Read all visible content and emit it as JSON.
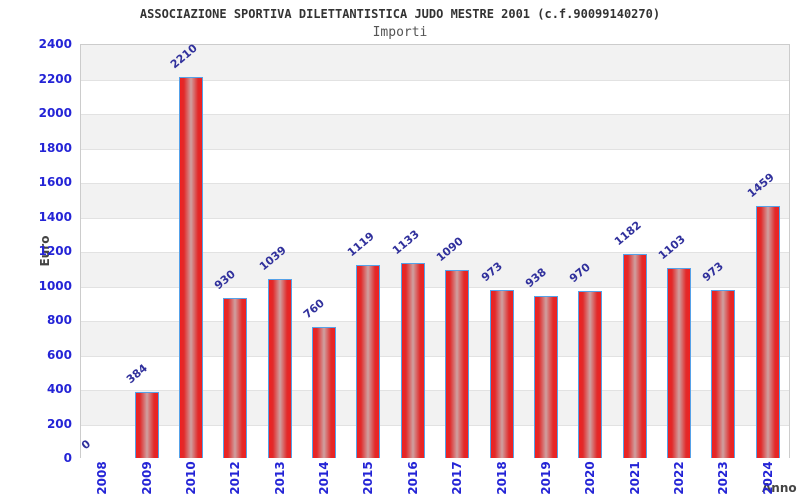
{
  "header": {
    "title": "ASSOCIAZIONE SPORTIVA DILETTANTISTICA JUDO MESTRE 2001 (c.f.90099140270)",
    "subtitle": "Importi"
  },
  "chart_data": {
    "type": "bar",
    "title": "ASSOCIAZIONE SPORTIVA DILETTANTISTICA JUDO MESTRE 2001 (c.f.90099140270)",
    "subtitle": "Importi",
    "xlabel": "Anno",
    "ylabel": "Euro",
    "categories": [
      "2008",
      "2009",
      "2010",
      "2012",
      "2013",
      "2014",
      "2015",
      "2016",
      "2017",
      "2018",
      "2019",
      "2020",
      "2021",
      "2022",
      "2023",
      "2024"
    ],
    "values": [
      0,
      384,
      2210,
      930,
      1039,
      760,
      1119,
      1133,
      1090,
      973,
      938,
      970,
      1182,
      1103,
      973,
      1459
    ],
    "ylim": [
      0,
      2400
    ],
    "y_ticks": [
      0,
      200,
      400,
      600,
      800,
      1000,
      1200,
      1400,
      1600,
      1800,
      2000,
      2200,
      2400
    ],
    "grid": true,
    "legend": "none",
    "colors": {
      "bar_edge": "#f02020",
      "bar_mid": "#cfa0a0",
      "bar_border": "#55a1e8",
      "tick_label": "#2424d6",
      "value_label": "#30309c",
      "axis_title": "#444444",
      "band_gray": "#f2f2f2",
      "band_white": "#ffffff",
      "gridline": "#e2e2e2",
      "plot_border": "#cccccc",
      "title": "#333333",
      "subtitle": "#555555"
    }
  }
}
